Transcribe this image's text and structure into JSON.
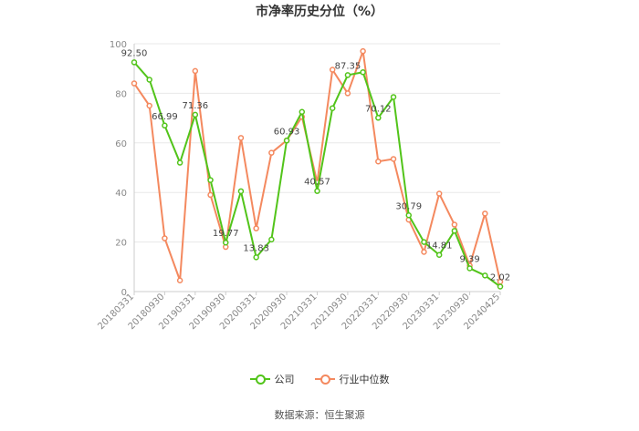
{
  "chart_data": {
    "type": "line",
    "title": "市净率历史分位（%）",
    "ylim": [
      0,
      100
    ],
    "yticks": [
      0,
      20,
      40,
      60,
      80,
      100
    ],
    "x_tick_labels": [
      "20180331",
      "20180930",
      "20190331",
      "20190930",
      "20200331",
      "20200930",
      "20210331",
      "20210930",
      "20220331",
      "20220930",
      "20230331",
      "20230930",
      "20240425"
    ],
    "grid": true,
    "legend": "bottom",
    "series": [
      {
        "name": "公司",
        "color": "#52c41a",
        "values": [
          92.5,
          85.5,
          66.99,
          52.0,
          71.36,
          45.0,
          19.77,
          40.5,
          13.83,
          21.0,
          60.93,
          72.5,
          40.57,
          74.0,
          87.35,
          88.5,
          70.12,
          78.5,
          30.79,
          20.0,
          14.81,
          24.5,
          9.39,
          6.5,
          2.02
        ],
        "labels": {
          "0": "92.50",
          "2": "66.99",
          "4": "71.36",
          "6": "19.77",
          "8": "13.83",
          "10": "60.93",
          "12": "40.57",
          "14": "87.35",
          "16": "70.12",
          "18": "30.79",
          "20": "14.81",
          "22": "9.39",
          "24": "2.02"
        }
      },
      {
        "name": "行业中位数",
        "color": "#f4895f",
        "values": [
          84.0,
          75.0,
          21.5,
          4.5,
          89.0,
          39.0,
          18.0,
          62.0,
          25.5,
          56.0,
          61.0,
          70.5,
          44.0,
          89.5,
          80.0,
          97.0,
          52.5,
          53.5,
          29.0,
          16.0,
          39.5,
          27.0,
          10.5,
          31.5,
          4.0
        ]
      }
    ]
  },
  "source": "数据来源：恒生聚源"
}
